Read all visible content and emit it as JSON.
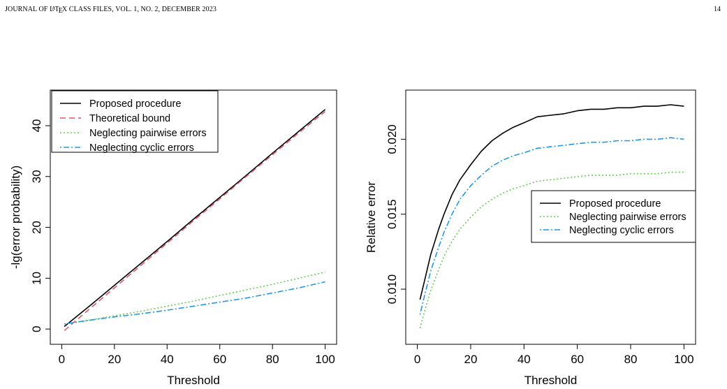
{
  "header": {
    "left": "JOURNAL OF LATEX CLASS FILES, VOL. 1, NO. 2, DECEMBER 2023",
    "page_number": "14"
  },
  "chart_data": [
    {
      "type": "line",
      "title": "",
      "xlabel": "Threshold",
      "ylabel": "-lg(error probability)",
      "xlim": [
        0,
        100
      ],
      "ylim": [
        -1,
        45
      ],
      "xticks": [
        0,
        20,
        40,
        60,
        80,
        100
      ],
      "yticks": [
        0,
        10,
        20,
        30,
        40
      ],
      "legend_position": "top-left",
      "grid": false,
      "series": [
        {
          "name": "Proposed procedure",
          "color": "#000000",
          "dash": "solid",
          "x": [
            1,
            5,
            10,
            20,
            30,
            40,
            50,
            60,
            70,
            80,
            90,
            100
          ],
          "y": [
            0.5,
            2.2,
            4.3,
            8.6,
            12.9,
            17.2,
            21.6,
            25.9,
            30.2,
            34.6,
            38.9,
            43.2
          ]
        },
        {
          "name": "Theoretical bound",
          "color": "#DF536B",
          "dash": "dashed",
          "x": [
            1,
            5,
            10,
            20,
            30,
            40,
            50,
            60,
            70,
            80,
            90,
            100
          ],
          "y": [
            -0.3,
            1.5,
            3.7,
            8.1,
            12.5,
            16.9,
            21.3,
            25.6,
            30.0,
            34.3,
            38.6,
            42.8
          ]
        },
        {
          "name": "Neglecting pairwise errors",
          "color": "#61D04F",
          "dash": "dotted",
          "x": [
            1,
            10,
            20,
            30,
            40,
            50,
            60,
            70,
            80,
            90,
            100
          ],
          "y": [
            1.0,
            1.7,
            2.6,
            3.5,
            4.5,
            5.5,
            6.6,
            7.7,
            8.8,
            10.0,
            11.2
          ]
        },
        {
          "name": "Neglecting cyclic errors",
          "color": "#2297E6",
          "dash": "dotdash",
          "x": [
            1,
            10,
            20,
            30,
            40,
            50,
            60,
            70,
            80,
            90,
            100
          ],
          "y": [
            1.0,
            1.7,
            2.4,
            3.0,
            3.7,
            4.5,
            5.3,
            6.1,
            7.1,
            8.1,
            9.3
          ]
        }
      ]
    },
    {
      "type": "line",
      "title": "",
      "xlabel": "Threshold",
      "ylabel": "Relative error",
      "xlim": [
        0,
        100
      ],
      "ylim": [
        0.007,
        0.0226
      ],
      "xticks": [
        0,
        20,
        40,
        60,
        80,
        100
      ],
      "yticks": [
        0.01,
        0.015,
        0.02
      ],
      "ytick_labels": [
        "0.010",
        "0.015",
        "0.020"
      ],
      "legend_position": "center-right",
      "grid": false,
      "series": [
        {
          "name": "Proposed procedure",
          "color": "#000000",
          "dash": "solid",
          "x": [
            1,
            3,
            5,
            8,
            10,
            13,
            16,
            20,
            24,
            28,
            32,
            36,
            40,
            45,
            50,
            55,
            60,
            65,
            70,
            75,
            80,
            85,
            90,
            95,
            100
          ],
          "y": [
            0.0093,
            0.0108,
            0.0123,
            0.014,
            0.015,
            0.0163,
            0.0173,
            0.0183,
            0.0192,
            0.0199,
            0.0204,
            0.0208,
            0.0211,
            0.0215,
            0.0216,
            0.0217,
            0.0219,
            0.022,
            0.022,
            0.0221,
            0.0221,
            0.0222,
            0.0222,
            0.0223,
            0.0222
          ]
        },
        {
          "name": "Neglecting pairwise errors",
          "color": "#61D04F",
          "dash": "dotted",
          "x": [
            1,
            3,
            5,
            8,
            10,
            13,
            16,
            20,
            24,
            28,
            32,
            36,
            40,
            45,
            50,
            55,
            60,
            65,
            70,
            75,
            80,
            85,
            90,
            95,
            100
          ],
          "y": [
            0.0074,
            0.0087,
            0.0099,
            0.0113,
            0.0122,
            0.0132,
            0.014,
            0.0148,
            0.0155,
            0.016,
            0.0164,
            0.0167,
            0.0169,
            0.0172,
            0.0173,
            0.0174,
            0.0175,
            0.0176,
            0.0176,
            0.0176,
            0.0177,
            0.0177,
            0.0177,
            0.0178,
            0.0178
          ]
        },
        {
          "name": "Neglecting cyclic errors",
          "color": "#2297E6",
          "dash": "dotdash",
          "x": [
            1,
            3,
            5,
            8,
            10,
            13,
            16,
            20,
            24,
            28,
            32,
            36,
            40,
            45,
            50,
            55,
            60,
            65,
            70,
            75,
            80,
            85,
            90,
            95,
            100
          ],
          "y": [
            0.0083,
            0.0098,
            0.0112,
            0.0128,
            0.0138,
            0.015,
            0.016,
            0.0169,
            0.0176,
            0.0182,
            0.0186,
            0.0189,
            0.0191,
            0.0194,
            0.0195,
            0.0196,
            0.0197,
            0.0198,
            0.0198,
            0.0199,
            0.0199,
            0.02,
            0.02,
            0.0201,
            0.02
          ]
        }
      ]
    }
  ]
}
